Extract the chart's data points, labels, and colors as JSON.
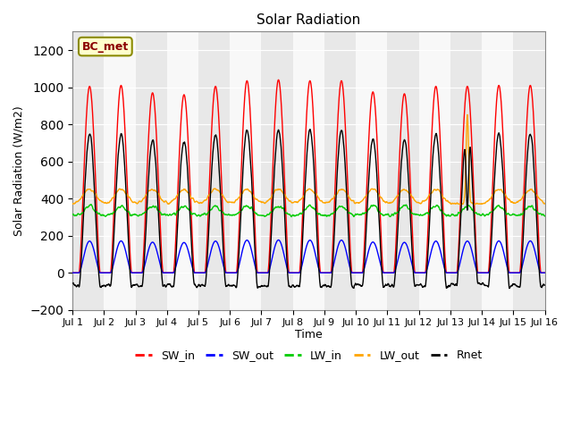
{
  "title": "Solar Radiation",
  "xlabel": "Time",
  "ylabel": "Solar Radiation (W/m2)",
  "ylim": [
    -200,
    1300
  ],
  "yticks": [
    -200,
    0,
    200,
    400,
    600,
    800,
    1000,
    1200
  ],
  "xtick_labels": [
    "Jul 1",
    "Jul 2",
    "Jul 3",
    "Jul 4",
    "Jul 5",
    "Jul 6",
    "Jul 7",
    "Jul 8",
    "Jul 9",
    "Jul 10",
    "Jul 11",
    "Jul 12",
    "Jul 13",
    "Jul 14",
    "Jul 15",
    "Jul 16"
  ],
  "annotation": "BC_met",
  "colors": {
    "SW_in": "#ff0000",
    "SW_out": "#0000ff",
    "LW_in": "#00cc00",
    "LW_out": "#ffa500",
    "Rnet": "#000000"
  },
  "n_days": 15,
  "dt_hours": 0.25,
  "sw_in_peaks": [
    1005,
    1010,
    970,
    960,
    1005,
    1035,
    1040,
    1035,
    1035,
    975,
    965,
    1005,
    1005,
    1010,
    1010
  ],
  "lw_base": 310,
  "lw_out_base": 375
}
